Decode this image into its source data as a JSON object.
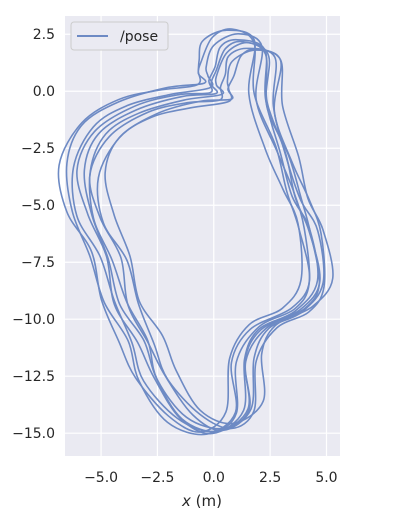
{
  "chart_data": {
    "type": "line",
    "xlabel_var": "x",
    "xlabel_unit": " (m)",
    "ylabel": "",
    "xlim": [
      -6.6,
      5.6
    ],
    "ylim": [
      -16.0,
      3.3
    ],
    "xticks": [
      -5.0,
      -2.5,
      0.0,
      2.5,
      5.0
    ],
    "yticks": [
      2.5,
      0.0,
      -2.5,
      -5.0,
      -7.5,
      -10.0,
      -12.5,
      -15.0
    ],
    "xtick_labels": [
      "−5.0",
      "−2.5",
      "0.0",
      "2.5",
      "5.0"
    ],
    "ytick_labels": [
      "2.5",
      "0.0",
      "−2.5",
      "−5.0",
      "−7.5",
      "−10.0",
      "−12.5",
      "−15.0"
    ],
    "grid": true,
    "legend_position": "top-left",
    "background_color": "#eaeaf2",
    "grid_color": "#ffffff",
    "series": [
      {
        "name": "/pose",
        "color": "#6d8ac4",
        "loop_base": [
          [
            0.1,
            -0.1
          ],
          [
            -1.5,
            -0.3
          ],
          [
            -3.4,
            -0.8
          ],
          [
            -5.0,
            -1.8
          ],
          [
            -5.8,
            -3.5
          ],
          [
            -5.5,
            -5.5
          ],
          [
            -4.6,
            -7.3
          ],
          [
            -4.1,
            -9.3
          ],
          [
            -3.2,
            -11.0
          ],
          [
            -2.6,
            -12.6
          ],
          [
            -1.3,
            -14.3
          ],
          [
            0.2,
            -14.9
          ],
          [
            1.4,
            -14.0
          ],
          [
            1.4,
            -11.8
          ],
          [
            2.2,
            -10.4
          ],
          [
            3.8,
            -9.6
          ],
          [
            4.6,
            -8.4
          ],
          [
            4.3,
            -6.1
          ],
          [
            3.7,
            -4.6
          ],
          [
            3.1,
            -2.8
          ],
          [
            2.3,
            -0.5
          ],
          [
            2.4,
            1.7
          ],
          [
            1.3,
            2.2
          ],
          [
            0.4,
            1.8
          ],
          [
            0.1,
            0.9
          ],
          [
            0.0,
            0.4
          ]
        ],
        "loop_offsets": [
          [
            0.0,
            0.0,
            1.0
          ],
          [
            -0.35,
            0.1,
            1.02
          ],
          [
            0.3,
            -0.1,
            0.98
          ],
          [
            -0.6,
            0.2,
            1.04
          ],
          [
            0.55,
            -0.2,
            0.97
          ],
          [
            -0.15,
            0.05,
            1.01
          ],
          [
            0.15,
            -0.05,
            0.99
          ],
          [
            -0.8,
            0.25,
            1.03
          ],
          [
            0.75,
            0.0,
            0.96
          ]
        ]
      }
    ]
  }
}
